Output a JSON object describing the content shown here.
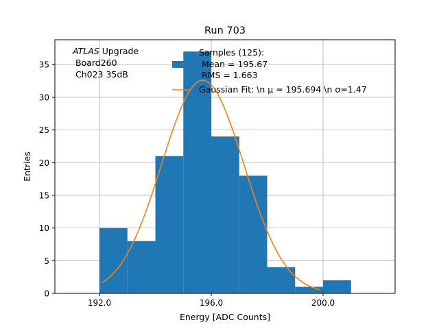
{
  "chart_data": {
    "type": "bar",
    "title": "Run 703",
    "xlabel": "Energy [ADC Counts]",
    "ylabel": "Entries",
    "xlim": [
      190.8,
      222.0
    ],
    "ylim": [
      0,
      38.8
    ],
    "grid": true,
    "x_ticks": [
      192.0,
      196.0,
      200.0
    ],
    "x_tick_labels": [
      "192.0",
      "196.0",
      "200.0"
    ],
    "y_ticks": [
      0,
      5,
      10,
      15,
      20,
      25,
      30,
      35
    ],
    "y_tick_labels": [
      "0",
      "5",
      "10",
      "15",
      "20",
      "25",
      "30",
      "35"
    ],
    "bins": [
      {
        "x0": 192,
        "x1": 193,
        "value": 10
      },
      {
        "x0": 193,
        "x1": 194,
        "value": 8
      },
      {
        "x0": 194,
        "x1": 195,
        "value": 21
      },
      {
        "x0": 195,
        "x1": 196,
        "value": 37
      },
      {
        "x0": 196,
        "x1": 197,
        "value": 24
      },
      {
        "x0": 197,
        "x1": 198,
        "value": 18
      },
      {
        "x0": 198,
        "x1": 199,
        "value": 4
      },
      {
        "x0": 199,
        "x1": 200,
        "value": 1
      },
      {
        "x0": 200,
        "x1": 201,
        "value": 2
      }
    ],
    "fit": {
      "type": "gaussian",
      "amplitude": 32.6,
      "mu": 195.694,
      "sigma": 1.47,
      "x_range": [
        192.1,
        199.9
      ]
    },
    "colors": {
      "bars": "#1f77b4",
      "fit": "#ff7f0e",
      "grid": "#b0b0b0"
    },
    "annotation": {
      "lines": [
        "ATLAS Upgrade",
        " Board260",
        " Ch023 35dB"
      ],
      "italic_word": "ATLAS"
    },
    "legend": {
      "placement": "top-right",
      "entries": [
        {
          "label_lines": [
            "Samples (125):",
            " Mean = 195.67",
            " RMS = 1.663"
          ],
          "marker": "patch"
        },
        {
          "label": "Gaussian Fit: \\n μ = 195.694 \\n σ=1.47",
          "marker": "line"
        }
      ]
    }
  }
}
